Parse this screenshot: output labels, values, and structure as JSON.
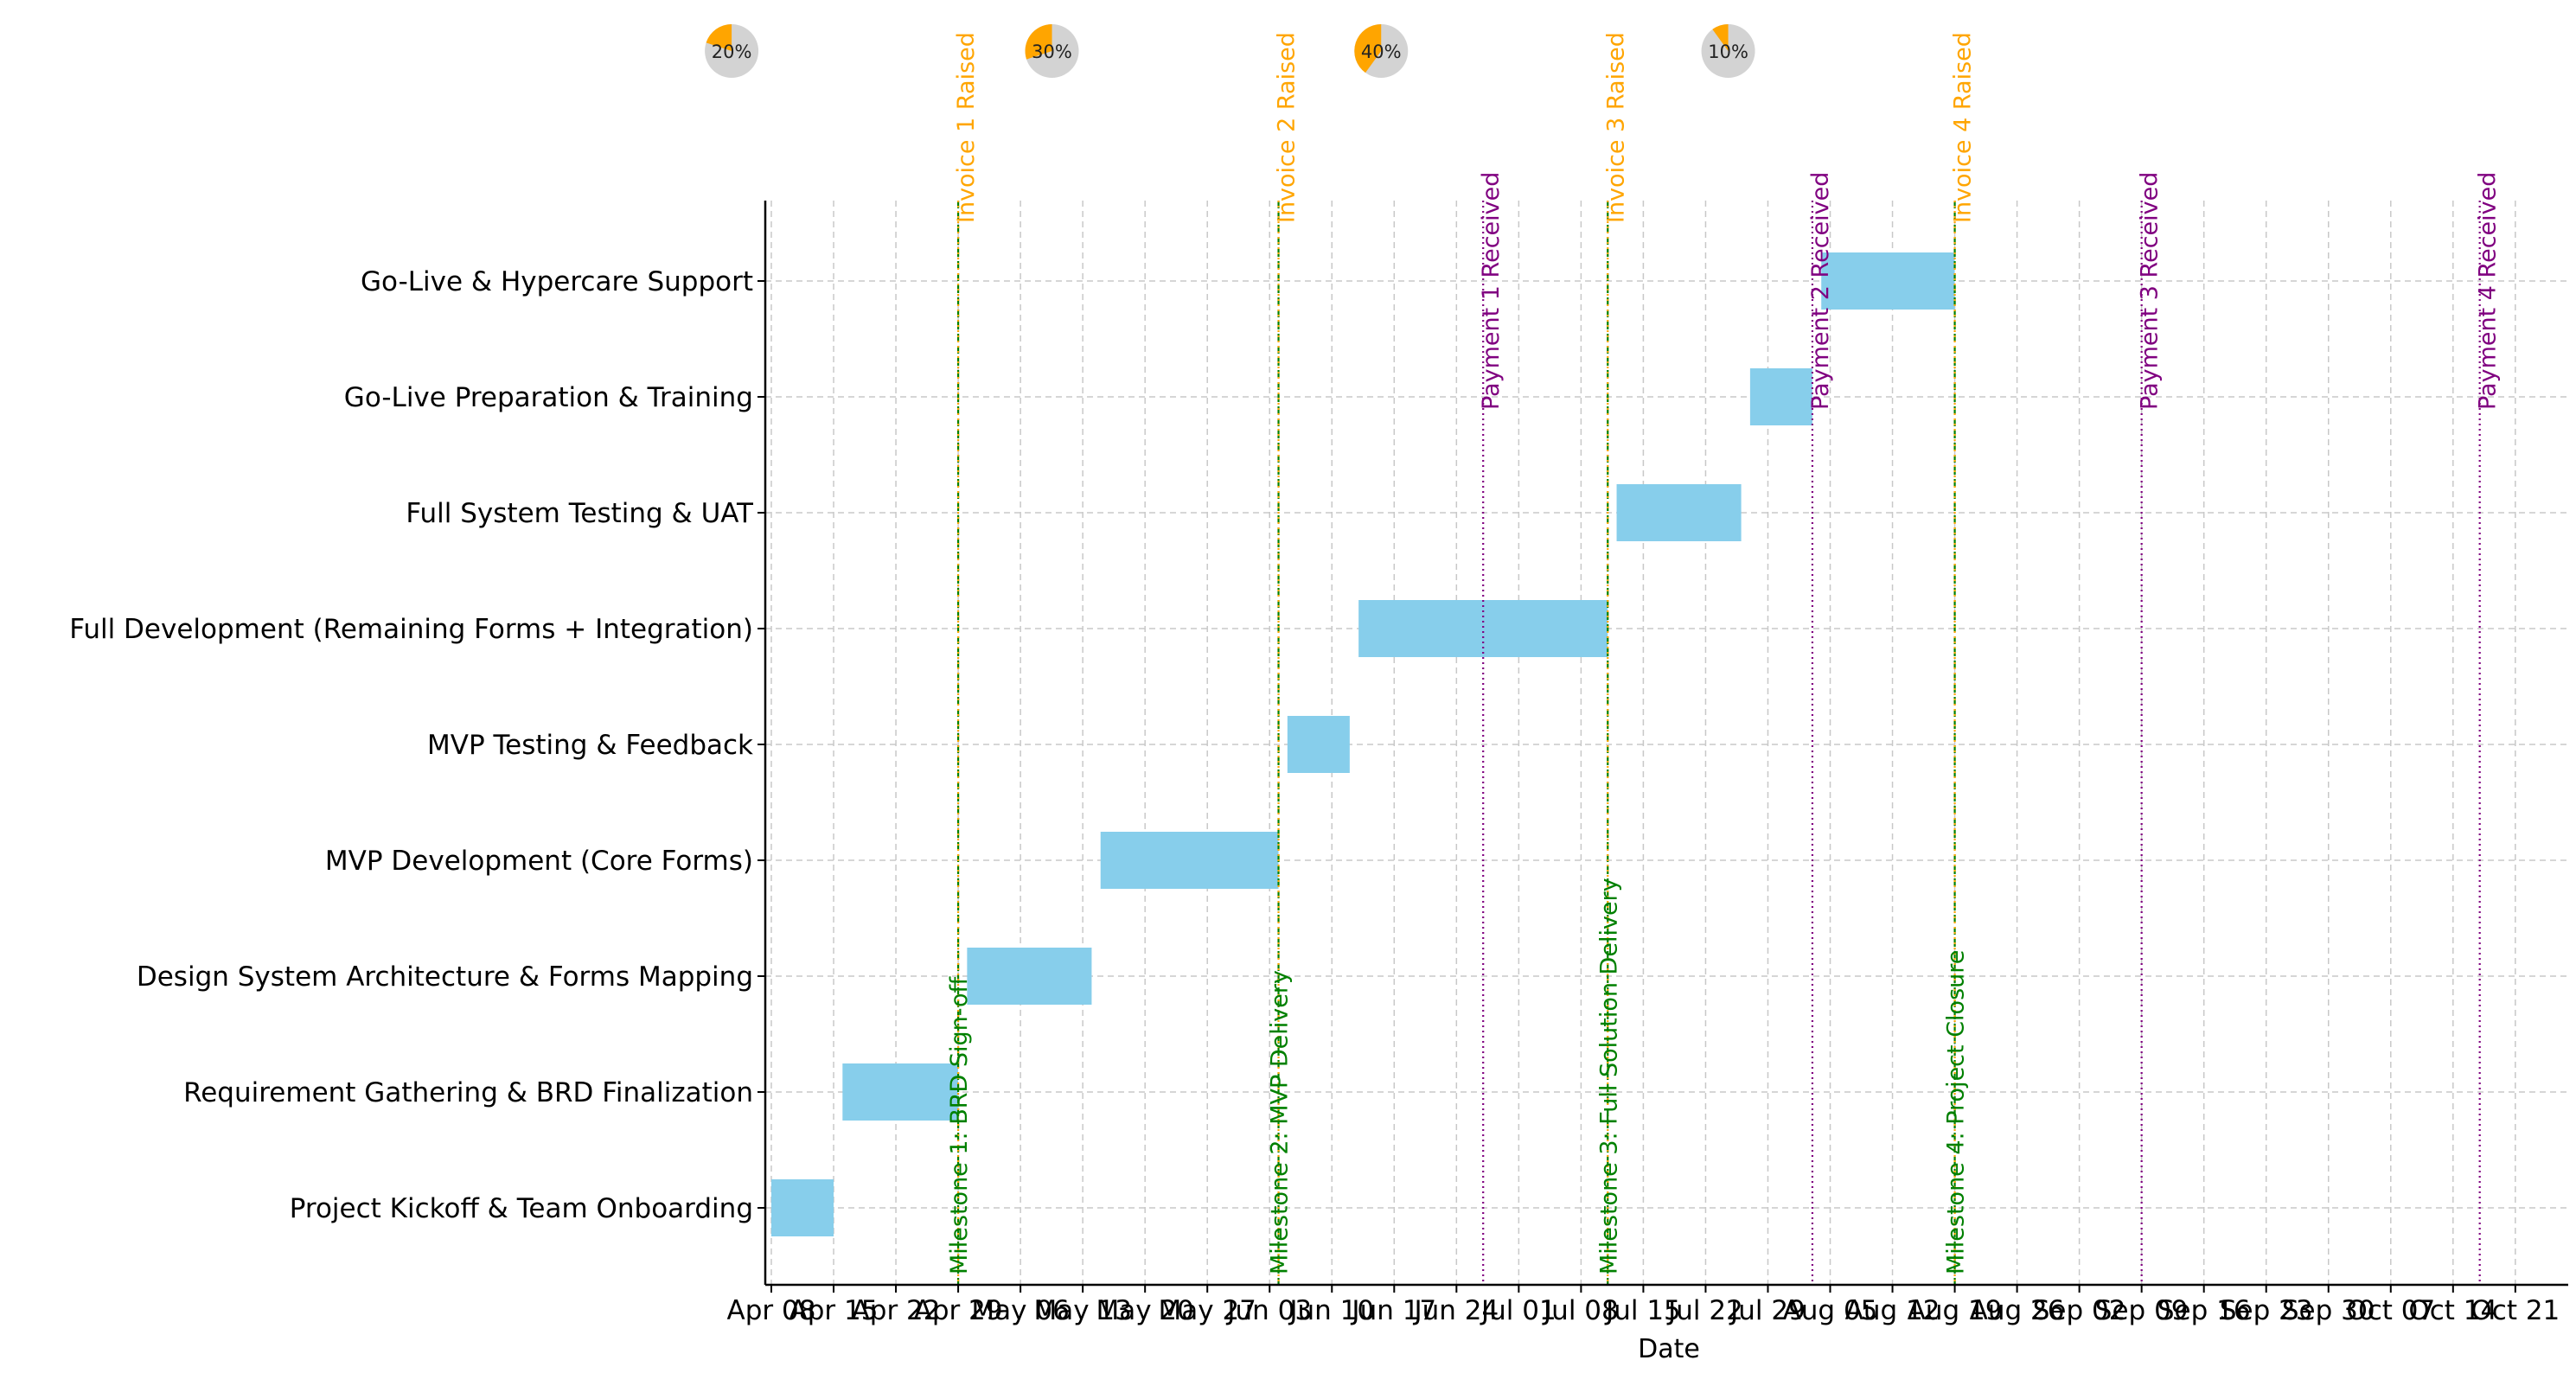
{
  "chart_data": {
    "type": "gantt",
    "xlabel": "Date",
    "x_range": [
      "2024-04-07",
      "2024-10-24"
    ],
    "grid": true,
    "bar_color": "#87CEEB",
    "tasks": [
      {
        "name": "Project Kickoff & Team Onboarding",
        "start": "2024-04-08",
        "end": "2024-04-15"
      },
      {
        "name": "Requirement Gathering & BRD Finalization",
        "start": "2024-04-16",
        "end": "2024-04-29"
      },
      {
        "name": "Design System Architecture & Forms Mapping",
        "start": "2024-04-30",
        "end": "2024-05-14"
      },
      {
        "name": "MVP Development (Core Forms)",
        "start": "2024-05-15",
        "end": "2024-06-04"
      },
      {
        "name": "MVP Testing & Feedback",
        "start": "2024-06-05",
        "end": "2024-06-12"
      },
      {
        "name": "Full Development (Remaining Forms + Integration)",
        "start": "2024-06-13",
        "end": "2024-07-11"
      },
      {
        "name": "Full System Testing & UAT",
        "start": "2024-07-12",
        "end": "2024-07-26"
      },
      {
        "name": "Go-Live Preparation & Training",
        "start": "2024-07-27",
        "end": "2024-08-03"
      },
      {
        "name": "Go-Live & Hypercare Support",
        "start": "2024-08-04",
        "end": "2024-08-19"
      }
    ],
    "milestones": [
      {
        "label": "Milestone 1: BRD Sign-off",
        "date": "2024-04-29",
        "invoice_label": "Invoice 1 Raised",
        "percent": 20,
        "percent_label": "20%"
      },
      {
        "label": "Milestone 2: MVP Delivery",
        "date": "2024-06-04",
        "invoice_label": "Invoice 2 Raised",
        "percent": 30,
        "percent_label": "30%"
      },
      {
        "label": "Milestone 3: Full Solution Delivery",
        "date": "2024-07-11",
        "invoice_label": "Invoice 3 Raised",
        "percent": 40,
        "percent_label": "40%"
      },
      {
        "label": "Milestone 4: Project Closure",
        "date": "2024-08-19",
        "invoice_label": "Invoice 4 Raised",
        "percent": 10,
        "percent_label": "10%"
      }
    ],
    "payments": [
      {
        "label": "Payment 1 Received",
        "date": "2024-06-27"
      },
      {
        "label": "Payment 2 Received",
        "date": "2024-08-03"
      },
      {
        "label": "Payment 3 Received",
        "date": "2024-09-09"
      },
      {
        "label": "Payment 4 Received",
        "date": "2024-10-17"
      }
    ],
    "x_ticks": [
      {
        "date": "2024-04-08",
        "label": "Apr 08"
      },
      {
        "date": "2024-04-15",
        "label": "Apr 15"
      },
      {
        "date": "2024-04-22",
        "label": "Apr 22"
      },
      {
        "date": "2024-04-29",
        "label": "Apr 29"
      },
      {
        "date": "2024-05-06",
        "label": "May 06"
      },
      {
        "date": "2024-05-13",
        "label": "May 13"
      },
      {
        "date": "2024-05-20",
        "label": "May 20"
      },
      {
        "date": "2024-05-27",
        "label": "May 27"
      },
      {
        "date": "2024-06-03",
        "label": "Jun 03"
      },
      {
        "date": "2024-06-10",
        "label": "Jun 10"
      },
      {
        "date": "2024-06-17",
        "label": "Jun 17"
      },
      {
        "date": "2024-06-24",
        "label": "Jun 24"
      },
      {
        "date": "2024-07-01",
        "label": "Jul 01"
      },
      {
        "date": "2024-07-08",
        "label": "Jul 08"
      },
      {
        "date": "2024-07-15",
        "label": "Jul 15"
      },
      {
        "date": "2024-07-22",
        "label": "Jul 22"
      },
      {
        "date": "2024-07-29",
        "label": "Jul 29"
      },
      {
        "date": "2024-08-05",
        "label": "Aug 05"
      },
      {
        "date": "2024-08-12",
        "label": "Aug 12"
      },
      {
        "date": "2024-08-19",
        "label": "Aug 19"
      },
      {
        "date": "2024-08-26",
        "label": "Aug 26"
      },
      {
        "date": "2024-09-02",
        "label": "Sep 02"
      },
      {
        "date": "2024-09-09",
        "label": "Sep 09"
      },
      {
        "date": "2024-09-16",
        "label": "Sep 16"
      },
      {
        "date": "2024-09-23",
        "label": "Sep 23"
      },
      {
        "date": "2024-09-30",
        "label": "Sep 30"
      },
      {
        "date": "2024-10-07",
        "label": "Oct 07"
      },
      {
        "date": "2024-10-14",
        "label": "Oct 14"
      },
      {
        "date": "2024-10-21",
        "label": "Oct 21"
      }
    ],
    "colors": {
      "milestone": "#008000",
      "invoice": "#FFA500",
      "payment": "#800080",
      "pie_fill": "#FFA500",
      "pie_rest": "#D3D3D3",
      "grid": "#c8c8c8",
      "axis": "#000000"
    }
  }
}
